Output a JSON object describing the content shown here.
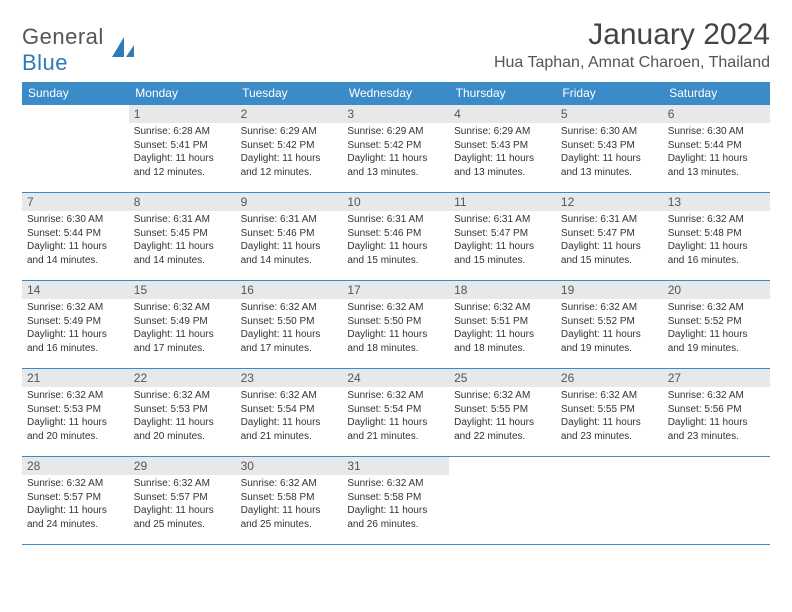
{
  "logo": {
    "text1": "General",
    "text2": "Blue"
  },
  "title": "January 2024",
  "location": "Hua Taphan, Amnat Charoen, Thailand",
  "weekdays": [
    "Sunday",
    "Monday",
    "Tuesday",
    "Wednesday",
    "Thursday",
    "Friday",
    "Saturday"
  ],
  "colors": {
    "header_bg": "#3b8bc9",
    "header_text": "#ffffff",
    "daynum_bg": "#e7e8ea",
    "border": "#3b8bc9",
    "text": "#333333"
  },
  "weeks": [
    [
      {
        "n": "",
        "sunrise": "",
        "sunset": "",
        "daylight": ""
      },
      {
        "n": "1",
        "sunrise": "Sunrise: 6:28 AM",
        "sunset": "Sunset: 5:41 PM",
        "daylight": "Daylight: 11 hours and 12 minutes."
      },
      {
        "n": "2",
        "sunrise": "Sunrise: 6:29 AM",
        "sunset": "Sunset: 5:42 PM",
        "daylight": "Daylight: 11 hours and 12 minutes."
      },
      {
        "n": "3",
        "sunrise": "Sunrise: 6:29 AM",
        "sunset": "Sunset: 5:42 PM",
        "daylight": "Daylight: 11 hours and 13 minutes."
      },
      {
        "n": "4",
        "sunrise": "Sunrise: 6:29 AM",
        "sunset": "Sunset: 5:43 PM",
        "daylight": "Daylight: 11 hours and 13 minutes."
      },
      {
        "n": "5",
        "sunrise": "Sunrise: 6:30 AM",
        "sunset": "Sunset: 5:43 PM",
        "daylight": "Daylight: 11 hours and 13 minutes."
      },
      {
        "n": "6",
        "sunrise": "Sunrise: 6:30 AM",
        "sunset": "Sunset: 5:44 PM",
        "daylight": "Daylight: 11 hours and 13 minutes."
      }
    ],
    [
      {
        "n": "7",
        "sunrise": "Sunrise: 6:30 AM",
        "sunset": "Sunset: 5:44 PM",
        "daylight": "Daylight: 11 hours and 14 minutes."
      },
      {
        "n": "8",
        "sunrise": "Sunrise: 6:31 AM",
        "sunset": "Sunset: 5:45 PM",
        "daylight": "Daylight: 11 hours and 14 minutes."
      },
      {
        "n": "9",
        "sunrise": "Sunrise: 6:31 AM",
        "sunset": "Sunset: 5:46 PM",
        "daylight": "Daylight: 11 hours and 14 minutes."
      },
      {
        "n": "10",
        "sunrise": "Sunrise: 6:31 AM",
        "sunset": "Sunset: 5:46 PM",
        "daylight": "Daylight: 11 hours and 15 minutes."
      },
      {
        "n": "11",
        "sunrise": "Sunrise: 6:31 AM",
        "sunset": "Sunset: 5:47 PM",
        "daylight": "Daylight: 11 hours and 15 minutes."
      },
      {
        "n": "12",
        "sunrise": "Sunrise: 6:31 AM",
        "sunset": "Sunset: 5:47 PM",
        "daylight": "Daylight: 11 hours and 15 minutes."
      },
      {
        "n": "13",
        "sunrise": "Sunrise: 6:32 AM",
        "sunset": "Sunset: 5:48 PM",
        "daylight": "Daylight: 11 hours and 16 minutes."
      }
    ],
    [
      {
        "n": "14",
        "sunrise": "Sunrise: 6:32 AM",
        "sunset": "Sunset: 5:49 PM",
        "daylight": "Daylight: 11 hours and 16 minutes."
      },
      {
        "n": "15",
        "sunrise": "Sunrise: 6:32 AM",
        "sunset": "Sunset: 5:49 PM",
        "daylight": "Daylight: 11 hours and 17 minutes."
      },
      {
        "n": "16",
        "sunrise": "Sunrise: 6:32 AM",
        "sunset": "Sunset: 5:50 PM",
        "daylight": "Daylight: 11 hours and 17 minutes."
      },
      {
        "n": "17",
        "sunrise": "Sunrise: 6:32 AM",
        "sunset": "Sunset: 5:50 PM",
        "daylight": "Daylight: 11 hours and 18 minutes."
      },
      {
        "n": "18",
        "sunrise": "Sunrise: 6:32 AM",
        "sunset": "Sunset: 5:51 PM",
        "daylight": "Daylight: 11 hours and 18 minutes."
      },
      {
        "n": "19",
        "sunrise": "Sunrise: 6:32 AM",
        "sunset": "Sunset: 5:52 PM",
        "daylight": "Daylight: 11 hours and 19 minutes."
      },
      {
        "n": "20",
        "sunrise": "Sunrise: 6:32 AM",
        "sunset": "Sunset: 5:52 PM",
        "daylight": "Daylight: 11 hours and 19 minutes."
      }
    ],
    [
      {
        "n": "21",
        "sunrise": "Sunrise: 6:32 AM",
        "sunset": "Sunset: 5:53 PM",
        "daylight": "Daylight: 11 hours and 20 minutes."
      },
      {
        "n": "22",
        "sunrise": "Sunrise: 6:32 AM",
        "sunset": "Sunset: 5:53 PM",
        "daylight": "Daylight: 11 hours and 20 minutes."
      },
      {
        "n": "23",
        "sunrise": "Sunrise: 6:32 AM",
        "sunset": "Sunset: 5:54 PM",
        "daylight": "Daylight: 11 hours and 21 minutes."
      },
      {
        "n": "24",
        "sunrise": "Sunrise: 6:32 AM",
        "sunset": "Sunset: 5:54 PM",
        "daylight": "Daylight: 11 hours and 21 minutes."
      },
      {
        "n": "25",
        "sunrise": "Sunrise: 6:32 AM",
        "sunset": "Sunset: 5:55 PM",
        "daylight": "Daylight: 11 hours and 22 minutes."
      },
      {
        "n": "26",
        "sunrise": "Sunrise: 6:32 AM",
        "sunset": "Sunset: 5:55 PM",
        "daylight": "Daylight: 11 hours and 23 minutes."
      },
      {
        "n": "27",
        "sunrise": "Sunrise: 6:32 AM",
        "sunset": "Sunset: 5:56 PM",
        "daylight": "Daylight: 11 hours and 23 minutes."
      }
    ],
    [
      {
        "n": "28",
        "sunrise": "Sunrise: 6:32 AM",
        "sunset": "Sunset: 5:57 PM",
        "daylight": "Daylight: 11 hours and 24 minutes."
      },
      {
        "n": "29",
        "sunrise": "Sunrise: 6:32 AM",
        "sunset": "Sunset: 5:57 PM",
        "daylight": "Daylight: 11 hours and 25 minutes."
      },
      {
        "n": "30",
        "sunrise": "Sunrise: 6:32 AM",
        "sunset": "Sunset: 5:58 PM",
        "daylight": "Daylight: 11 hours and 25 minutes."
      },
      {
        "n": "31",
        "sunrise": "Sunrise: 6:32 AM",
        "sunset": "Sunset: 5:58 PM",
        "daylight": "Daylight: 11 hours and 26 minutes."
      },
      {
        "n": "",
        "sunrise": "",
        "sunset": "",
        "daylight": ""
      },
      {
        "n": "",
        "sunrise": "",
        "sunset": "",
        "daylight": ""
      },
      {
        "n": "",
        "sunrise": "",
        "sunset": "",
        "daylight": ""
      }
    ]
  ]
}
